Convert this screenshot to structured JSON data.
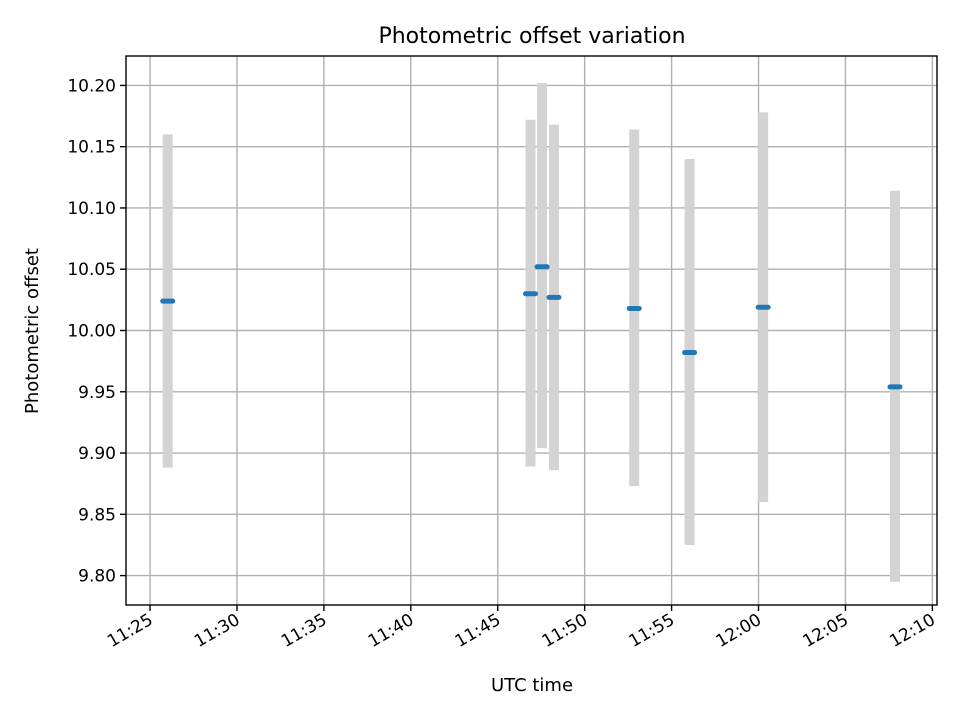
{
  "chart_data": {
    "type": "scatter",
    "title": "Photometric offset variation",
    "xlabel": "UTC time",
    "ylabel": "Photometric offset",
    "x_ticks": [
      "11:25",
      "11:30",
      "11:35",
      "11:40",
      "11:45",
      "11:50",
      "11:55",
      "12:00",
      "12:05",
      "12:10"
    ],
    "y_ticks": [
      "9.80",
      "9.85",
      "9.90",
      "9.95",
      "10.00",
      "10.05",
      "10.10",
      "10.15",
      "10.20"
    ],
    "xlim": [
      "11:23:37",
      "12:10:16"
    ],
    "ylim": [
      9.776,
      10.224
    ],
    "grid": true,
    "points": [
      {
        "x": "11:26:01",
        "y": 10.024,
        "y_low": 9.888,
        "y_high": 10.16
      },
      {
        "x": "11:46:53",
        "y": 10.03,
        "y_low": 9.889,
        "y_high": 10.172
      },
      {
        "x": "11:47:33",
        "y": 10.052,
        "y_low": 9.904,
        "y_high": 10.202
      },
      {
        "x": "11:48:14",
        "y": 10.027,
        "y_low": 9.886,
        "y_high": 10.168
      },
      {
        "x": "11:52:51",
        "y": 10.018,
        "y_low": 9.873,
        "y_high": 10.164
      },
      {
        "x": "11:56:02",
        "y": 9.982,
        "y_low": 9.825,
        "y_high": 10.14
      },
      {
        "x": "12:00:16",
        "y": 10.019,
        "y_low": 9.86,
        "y_high": 10.178
      },
      {
        "x": "12:07:51",
        "y": 9.954,
        "y_low": 9.795,
        "y_high": 10.114
      }
    ],
    "colors": {
      "marker": "#1f77b4",
      "errorbar": "#d3d3d3",
      "grid": "#b0b0b0"
    }
  }
}
